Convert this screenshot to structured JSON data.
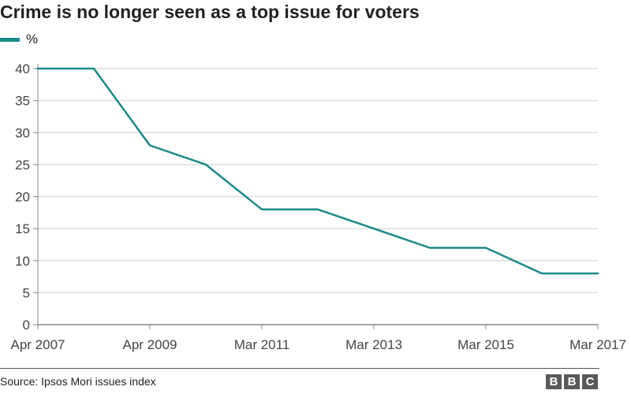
{
  "chart_data": {
    "type": "line",
    "title": "Crime is no longer seen as a top issue for voters",
    "legend": "%",
    "series": [
      {
        "name": "%",
        "color": "#1a8a8a",
        "x": [
          2007.25,
          2008.25,
          2009.25,
          2010.25,
          2011.25,
          2012.25,
          2013.25,
          2014.25,
          2015.25,
          2016.25,
          2017.25
        ],
        "values": [
          40,
          40,
          28,
          25,
          18,
          18,
          15,
          12,
          12,
          8,
          8
        ]
      }
    ],
    "xtick_values": [
      2007.25,
      2009.25,
      2011.25,
      2013.25,
      2015.25,
      2017.25
    ],
    "xtick_labels": [
      "Apr 2007",
      "Apr 2009",
      "Mar 2011",
      "Mar 2013",
      "Mar 2015",
      "Mar 2017"
    ],
    "ytick_values": [
      0,
      5,
      10,
      15,
      20,
      25,
      30,
      35,
      40
    ],
    "ytick_labels": [
      "0",
      "5",
      "10",
      "15",
      "20",
      "25",
      "30",
      "35",
      "40"
    ],
    "xlim": [
      2007.25,
      2017.25
    ],
    "ylim": [
      0,
      40
    ],
    "grid": true
  },
  "source": "Source: Ipsos Mori issues index",
  "logo": [
    "B",
    "B",
    "C"
  ]
}
